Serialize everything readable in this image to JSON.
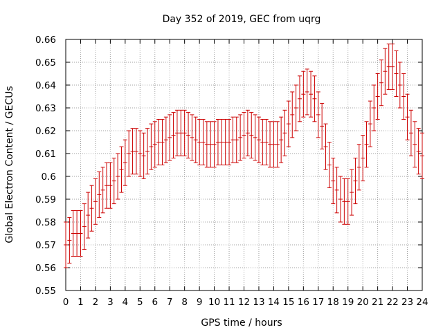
{
  "chart_data": {
    "type": "line",
    "style": "error-bars",
    "title": "Day 352 of 2019, GEC from uqrg",
    "xlabel": "GPS time / hours",
    "ylabel": "Global Electron Content / GECUs",
    "xlim": [
      0,
      24
    ],
    "ylim": [
      0.55,
      0.66
    ],
    "x_ticks": [
      0,
      1,
      2,
      3,
      4,
      5,
      6,
      7,
      8,
      9,
      10,
      11,
      12,
      13,
      14,
      15,
      16,
      17,
      18,
      19,
      20,
      21,
      22,
      23,
      24
    ],
    "y_ticks": [
      0.55,
      0.56,
      0.57,
      0.58,
      0.59,
      0.6,
      0.61,
      0.62,
      0.63,
      0.64,
      0.65,
      0.66
    ],
    "y_tick_labels": [
      "0.55",
      "0.56",
      "0.57",
      "0.58",
      "0.59",
      "0.6",
      "0.61",
      "0.62",
      "0.63",
      "0.64",
      "0.65",
      "0.66"
    ],
    "grid": true,
    "color": "#cc0000",
    "error": 0.01,
    "series": [
      {
        "x": [
          0,
          0.25,
          0.5,
          0.75,
          1,
          1.25,
          1.5,
          1.75,
          2,
          2.25,
          2.5,
          2.75,
          3,
          3.25,
          3.5,
          3.75,
          4,
          4.25,
          4.5,
          4.75,
          5,
          5.25,
          5.5,
          5.75,
          6,
          6.25,
          6.5,
          6.75,
          7,
          7.25,
          7.5,
          7.75,
          8,
          8.25,
          8.5,
          8.75,
          9,
          9.25,
          9.5,
          9.75,
          10,
          10.25,
          10.5,
          10.75,
          11,
          11.25,
          11.5,
          11.75,
          12,
          12.25,
          12.5,
          12.75,
          13,
          13.25,
          13.5,
          13.75,
          14,
          14.25,
          14.5,
          14.75,
          15,
          15.25,
          15.5,
          15.75,
          16,
          16.25,
          16.5,
          16.75,
          17,
          17.25,
          17.5,
          17.75,
          18,
          18.25,
          18.5,
          18.75,
          19,
          19.25,
          19.5,
          19.75,
          20,
          20.25,
          20.5,
          20.75,
          21,
          21.25,
          21.5,
          21.75,
          22,
          22.25,
          22.5,
          22.75,
          23,
          23.25,
          23.5,
          23.75,
          24
        ],
        "y": [
          0.57,
          0.572,
          0.575,
          0.575,
          0.575,
          0.578,
          0.583,
          0.586,
          0.589,
          0.592,
          0.594,
          0.596,
          0.596,
          0.598,
          0.6,
          0.603,
          0.606,
          0.61,
          0.611,
          0.611,
          0.61,
          0.609,
          0.611,
          0.613,
          0.614,
          0.615,
          0.615,
          0.616,
          0.617,
          0.618,
          0.619,
          0.619,
          0.619,
          0.618,
          0.617,
          0.616,
          0.615,
          0.615,
          0.614,
          0.614,
          0.614,
          0.615,
          0.615,
          0.615,
          0.615,
          0.616,
          0.616,
          0.617,
          0.618,
          0.619,
          0.618,
          0.617,
          0.616,
          0.615,
          0.615,
          0.614,
          0.614,
          0.614,
          0.616,
          0.619,
          0.623,
          0.627,
          0.63,
          0.634,
          0.636,
          0.637,
          0.636,
          0.634,
          0.627,
          0.622,
          0.613,
          0.605,
          0.598,
          0.594,
          0.59,
          0.589,
          0.589,
          0.593,
          0.598,
          0.604,
          0.608,
          0.614,
          0.623,
          0.63,
          0.635,
          0.641,
          0.646,
          0.648,
          0.648,
          0.645,
          0.64,
          0.635,
          0.626,
          0.619,
          0.614,
          0.611,
          0.609
        ]
      }
    ]
  }
}
